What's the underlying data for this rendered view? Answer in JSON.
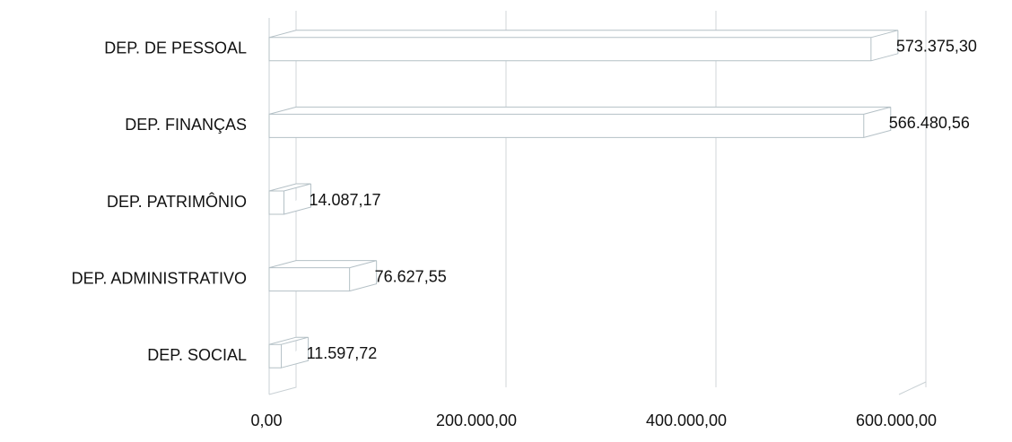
{
  "chart_data": {
    "type": "bar",
    "orientation": "horizontal",
    "categories": [
      "DEP. DE PESSOAL",
      "DEP. FINANÇAS",
      "DEP. PATRIMÔNIO",
      "DEP. ADMINISTRATIVO",
      "DEP. SOCIAL"
    ],
    "values": [
      573375.3,
      566480.56,
      14087.17,
      76627.55,
      11597.72
    ],
    "value_labels": [
      "573.375,30",
      "566.480,56",
      "14.087,17",
      "76.627,55",
      "11.597,72"
    ],
    "color": "#ffffff",
    "xlim": [
      0,
      600000
    ],
    "xticks": [
      {
        "value": 0,
        "label": "0,00"
      },
      {
        "value": 200000,
        "label": "200.000,00"
      },
      {
        "value": 400000,
        "label": "400.000,00"
      },
      {
        "value": 600000,
        "label": "600.000,00"
      }
    ],
    "grid": true
  }
}
